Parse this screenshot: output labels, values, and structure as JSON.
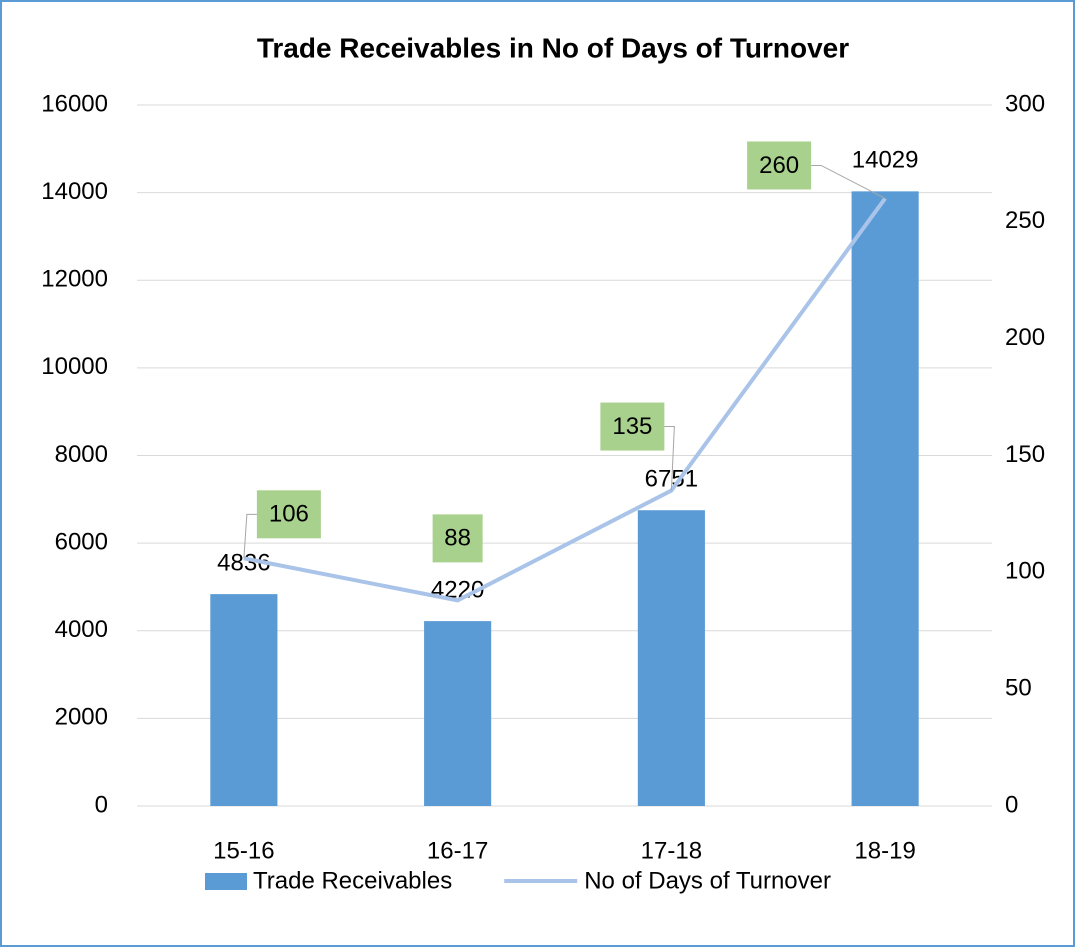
{
  "chart_data": {
    "type": "bar",
    "title": "Trade Receivables in No of Days of Turnover",
    "categories": [
      "15-16",
      "16-17",
      "17-18",
      "18-19"
    ],
    "series": [
      {
        "name": "Trade Receivables",
        "type": "bar",
        "color": "#5b9bd5",
        "values": [
          4836,
          4220,
          6751,
          14029
        ]
      },
      {
        "name": "No of Days of Turnover",
        "type": "line",
        "axis": "y2",
        "color": "#a9c4e8",
        "label_color": "#a9d18e",
        "values": [
          106,
          88,
          135,
          260
        ]
      }
    ],
    "ylim": [
      0,
      16000
    ],
    "yticks": [
      0,
      2000,
      4000,
      6000,
      8000,
      10000,
      12000,
      14000,
      16000
    ],
    "y2lim": [
      0,
      300
    ],
    "y2ticks": [
      0,
      50,
      100,
      150,
      200,
      250,
      300
    ],
    "grid": true,
    "legend": "bottom"
  }
}
